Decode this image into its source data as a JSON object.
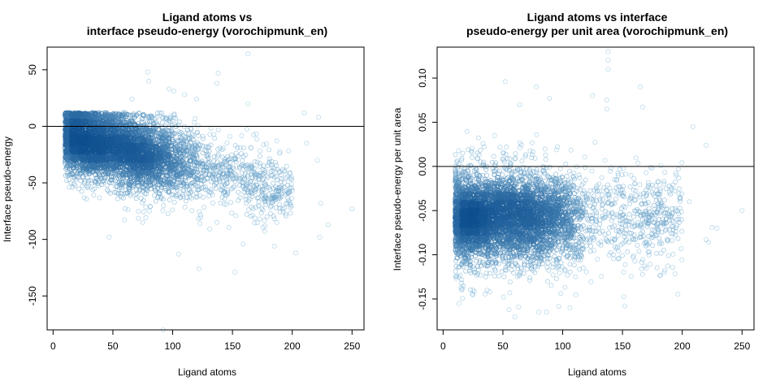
{
  "figure": {
    "colors": {
      "point_light": "#8fc3e0",
      "point_dark": "#0d4f8f",
      "axis": "#000000",
      "reference_line": "#000000"
    }
  },
  "chart_data": [
    {
      "type": "scatter",
      "density_colored": true,
      "title": [
        "Ligand atoms vs",
        "interface pseudo-energy (vorochipmunk_en)"
      ],
      "xlabel": "Ligand atoms",
      "ylabel": "Interface pseudo-energy",
      "xlim": [
        -5,
        260
      ],
      "ylim": [
        -180,
        70
      ],
      "xticks": [
        0,
        50,
        100,
        150,
        200,
        250
      ],
      "yticks": [
        -150,
        -100,
        -50,
        0,
        50
      ],
      "tick_labels_x": [
        "0",
        "50",
        "100",
        "150",
        "200",
        "250"
      ],
      "tick_labels_y": [
        "-150",
        "-100",
        "-50",
        "0",
        "50"
      ],
      "hline": 0,
      "n_points_approx": 4500,
      "density_center": [
        52,
        -22
      ],
      "trend": {
        "x_mean": 70,
        "y_at_10": -8,
        "slope_per_atom": -0.25,
        "spread_sd": 17
      },
      "notable_points": [
        [
          163,
          64
        ],
        [
          79,
          48
        ],
        [
          138,
          47
        ],
        [
          80,
          40
        ],
        [
          137,
          38
        ],
        [
          97,
          33
        ],
        [
          101,
          31
        ],
        [
          110,
          28
        ],
        [
          120,
          24
        ],
        [
          66,
          24
        ],
        [
          163,
          20
        ],
        [
          210,
          12
        ],
        [
          222,
          8
        ],
        [
          221,
          -30
        ],
        [
          212,
          -15
        ],
        [
          230,
          -87
        ],
        [
          250,
          -73
        ],
        [
          224,
          -68
        ],
        [
          203,
          -112
        ],
        [
          223,
          -98
        ],
        [
          92,
          -180
        ],
        [
          152,
          -129
        ],
        [
          122,
          -126
        ],
        [
          105,
          -113
        ],
        [
          47,
          -98
        ],
        [
          185,
          -106
        ],
        [
          187,
          -85
        ],
        [
          159,
          -104
        ],
        [
          75,
          -85
        ],
        [
          200,
          -57
        ]
      ]
    },
    {
      "type": "scatter",
      "density_colored": true,
      "title": [
        "Ligand atoms vs interface",
        "pseudo-energy per unit area (vorochipmunk_en)"
      ],
      "xlabel": "Ligand atoms",
      "ylabel": "Interface pseudo-energy per unit area",
      "xlim": [
        -5,
        260
      ],
      "ylim": [
        -0.185,
        0.135
      ],
      "xticks": [
        0,
        50,
        100,
        150,
        200,
        250
      ],
      "yticks": [
        -0.15,
        -0.1,
        -0.05,
        0.0,
        0.05,
        0.1
      ],
      "tick_labels_x": [
        "0",
        "50",
        "100",
        "150",
        "200",
        "250"
      ],
      "tick_labels_y": [
        "-0.15",
        "-0.10",
        "-0.05",
        "0.00",
        "0.05",
        "0.10"
      ],
      "hline": 0,
      "n_points_approx": 4500,
      "density_center": [
        78,
        -0.064
      ],
      "trend": {
        "x_mean": 70,
        "y_mean": -0.058,
        "spread_sd": 0.028
      },
      "notable_points": [
        [
          138,
          0.13
        ],
        [
          138,
          0.12
        ],
        [
          138,
          0.11
        ],
        [
          137,
          0.075
        ],
        [
          137,
          0.065
        ],
        [
          52,
          0.096
        ],
        [
          165,
          0.09
        ],
        [
          78,
          0.09
        ],
        [
          89,
          0.077
        ],
        [
          125,
          0.08
        ],
        [
          64,
          0.07
        ],
        [
          209,
          0.045
        ],
        [
          220,
          0.024
        ],
        [
          167,
          0.067
        ],
        [
          229,
          -0.07
        ],
        [
          250,
          -0.05
        ],
        [
          220,
          -0.083
        ],
        [
          222,
          -0.086
        ],
        [
          206,
          -0.04
        ],
        [
          80,
          -0.165
        ],
        [
          55,
          -0.162
        ],
        [
          106,
          -0.16
        ],
        [
          152,
          -0.158
        ],
        [
          13,
          -0.125
        ],
        [
          25,
          -0.14
        ],
        [
          185,
          -0.12
        ],
        [
          170,
          -0.115
        ],
        [
          195,
          -0.05
        ],
        [
          225,
          -0.069
        ],
        [
          60,
          -0.17
        ]
      ]
    }
  ]
}
